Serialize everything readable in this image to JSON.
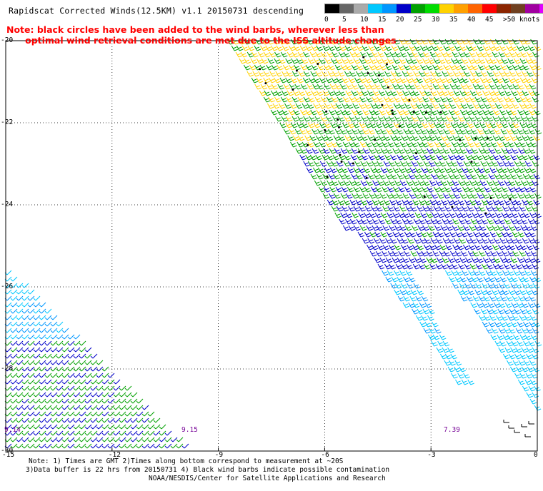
{
  "title": "Rapidscat Corrected Winds(12.5KM) v1.1 20150731 descending",
  "legend": {
    "colors": [
      "#000000",
      "#666666",
      "#aaaaaa",
      "#00c8ff",
      "#0096ff",
      "#0000c8",
      "#00a000",
      "#00dc00",
      "#ffd200",
      "#ffa000",
      "#ff6400",
      "#ff0000",
      "#8b2500",
      "#704020",
      "#a000a0",
      "#e000ff",
      "#6000c0"
    ],
    "labels": [
      "0",
      "5",
      "10",
      "15",
      "20",
      "25",
      "30",
      "35",
      "40",
      "45",
      ">50 knots"
    ],
    "unit": "knots"
  },
  "note_lines": [
    "Note: black circles have been added to the wind barbs, wherever less than",
    "      optimal wind retrieval conditions are met due to the ISS altitude changes"
  ],
  "map": {
    "lon_ticks": [
      "-15",
      "-12",
      "-9",
      "-6",
      "-3",
      "0"
    ],
    "lat_ticks": [
      "-20",
      "-22",
      "-24",
      "-26",
      "-28",
      "-30"
    ],
    "lon_range": [
      -15,
      0
    ],
    "lat_range": [
      -30,
      -20
    ],
    "time_labels": [
      {
        "text": "9.14",
        "lon": -15.0,
        "lat": -29.5
      },
      {
        "text": "9.15",
        "lon": -10.0,
        "lat": -29.5
      },
      {
        "text": "7.39",
        "lon": -2.6,
        "lat": -29.5
      }
    ]
  },
  "footer": {
    "line1": "Note: 1) Times are GMT 2)Times along bottom correspond to measurement at ~20S",
    "line2": "3)Data buffer is 22 hrs from 20150731 4) Black wind barbs indicate possible contamination",
    "line3": "NOAA/NESDIS/Center for Satellite Applications and Research"
  }
}
